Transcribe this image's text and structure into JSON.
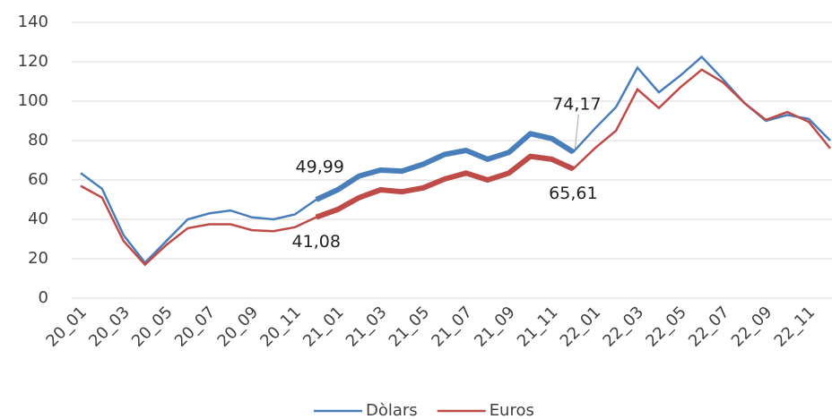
{
  "chart_data": {
    "type": "line",
    "categories": [
      "20_01",
      null,
      "20_03",
      null,
      "20_05",
      null,
      "20_07",
      null,
      "20_09",
      null,
      "20_11",
      null,
      "21_01",
      null,
      "21_03",
      null,
      "21_05",
      null,
      "21_07",
      null,
      "21_09",
      null,
      "21_11",
      null,
      "22_01",
      null,
      "22_03",
      null,
      "22_05",
      null,
      "22_07",
      null,
      "22_09",
      null,
      "22_11",
      null
    ],
    "series": [
      {
        "name": "Dòlars",
        "color": "#4a7ebb",
        "values": [
          63.5,
          55.5,
          32,
          18,
          29,
          40,
          43,
          44.5,
          41,
          40,
          42.5,
          49.99,
          55,
          62,
          65,
          64.5,
          68,
          73,
          75,
          70.5,
          74,
          83.5,
          81,
          74.17,
          86,
          97,
          117,
          104.5,
          113,
          122.5,
          111,
          99,
          90,
          93,
          91,
          80
        ],
        "value_labels": [
          null,
          null,
          null,
          null,
          null,
          null,
          null,
          null,
          null,
          null,
          null,
          "49,99",
          null,
          null,
          null,
          null,
          null,
          null,
          null,
          null,
          null,
          null,
          null,
          "74,17",
          null,
          null,
          null,
          null,
          null,
          null,
          null,
          null,
          null,
          null,
          null,
          null
        ]
      },
      {
        "name": "Euros",
        "color": "#be4b48",
        "values": [
          57,
          51,
          29,
          17,
          27,
          35.5,
          37.5,
          37.5,
          34.5,
          34,
          36,
          41.08,
          45,
          51,
          55,
          54,
          56,
          60.5,
          63.5,
          60,
          63.5,
          72,
          70.5,
          65.61,
          76,
          85,
          106,
          96.5,
          107,
          116,
          109.5,
          99,
          90.5,
          94.5,
          89.5,
          76
        ],
        "value_labels": [
          null,
          null,
          null,
          null,
          null,
          null,
          null,
          null,
          null,
          null,
          null,
          "41,08",
          null,
          null,
          null,
          null,
          null,
          null,
          null,
          null,
          null,
          null,
          null,
          "65,61",
          null,
          null,
          null,
          null,
          null,
          null,
          null,
          null,
          null,
          null,
          null,
          null
        ]
      }
    ],
    "ylim": [
      0,
      140
    ],
    "yticks": [
      0,
      20,
      40,
      60,
      80,
      100,
      120,
      140
    ],
    "grid": true,
    "legend": "bottom"
  }
}
